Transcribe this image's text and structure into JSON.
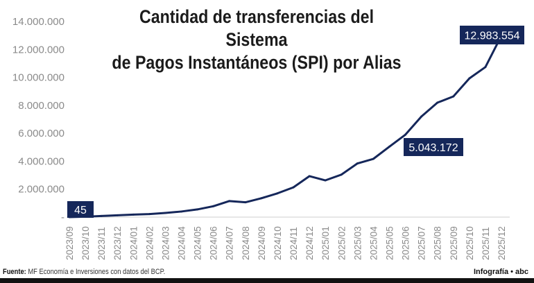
{
  "chart_data": {
    "type": "line",
    "title": "Cantidad de transferencias del Sistema de Pagos Instantáneos (SPI) por Alias",
    "title_lines": [
      "Cantidad de transferencias del Sistema",
      "de Pagos Instantáneos (SPI) por Alias"
    ],
    "categories": [
      "2023/09",
      "2023/10",
      "2023/11",
      "2023/12",
      "2024/01",
      "2024/02",
      "2024/03",
      "2024/04",
      "2024/05",
      "2024/06",
      "2024/07",
      "2024/08",
      "2024/09",
      "2024/10",
      "2024/11",
      "2024/12",
      "2025/01",
      "2025/02",
      "2025/03",
      "2025/04",
      "2025/05",
      "2025/06",
      "2025/07",
      "2025/08",
      "2025/09",
      "2025/10",
      "2025/11",
      "2025/12"
    ],
    "values": [
      45,
      30000,
      80000,
      130000,
      180000,
      220000,
      300000,
      400000,
      550000,
      780000,
      1150000,
      1060000,
      1350000,
      1700000,
      2130000,
      2930000,
      2630000,
      3040000,
      3840000,
      4170000,
      5043172,
      5900000,
      7200000,
      8190000,
      8640000,
      9930000,
      10740000,
      12983554
    ],
    "yticks": [
      0,
      2000000,
      4000000,
      6000000,
      8000000,
      10000000,
      12000000,
      14000000
    ],
    "ytick_labels": [
      "-",
      "2.000.000",
      "4.000.000",
      "6.000.000",
      "8.000.000",
      "10.000.000",
      "12.000.000",
      "14.000.000"
    ],
    "ylim": [
      0,
      14000000
    ],
    "annotations": [
      {
        "category": "2023/09",
        "text": "45"
      },
      {
        "category": "2025/05",
        "text": "5.043.172"
      },
      {
        "category": "2025/12",
        "text": "12.983.554"
      }
    ],
    "grid": false,
    "color": "#15275a"
  },
  "footer": {
    "source_label": "Fuente:",
    "source_text": " MF Economía e Inversiones con datos del BCP.",
    "credit": "Infografía • abc"
  }
}
